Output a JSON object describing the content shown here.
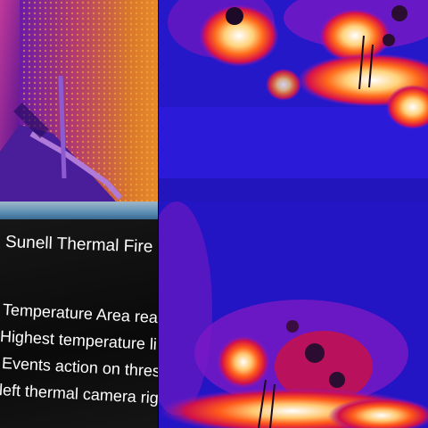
{
  "slide": {
    "title": "Sunell Thermal Fire Tes",
    "bullets": [
      "Temperature Area read",
      "Highest temperature li",
      "Events action on thresh",
      "left thermal camera righ"
    ]
  },
  "palette": {
    "thermal_blue": "#2a18d8",
    "thermal_purple": "#8a19c9",
    "thermal_red": "#e0102a",
    "thermal_orange": "#ff8a1f",
    "thermal_white": "#ffffff"
  }
}
